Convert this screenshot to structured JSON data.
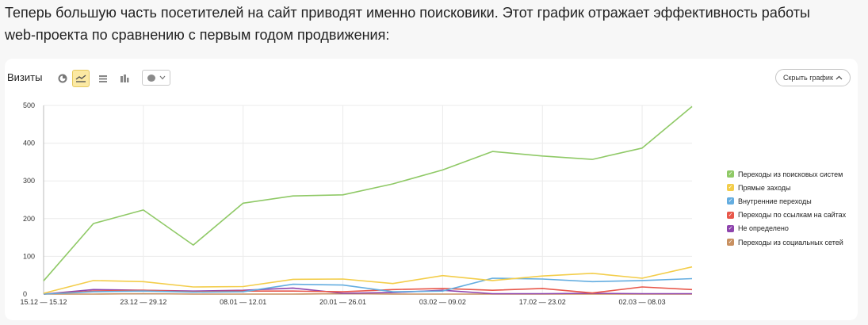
{
  "intro": {
    "line1": "Теперь большую часть посетителей на сайт приводят именно поисковики. Этот график отражает эффективность работы",
    "line2": "web-проекта по сравнению с первым годом продвижения:"
  },
  "toolbar": {
    "title": "Визиты",
    "icons": [
      "pie-chart-icon",
      "line-chart-icon",
      "area-chart-icon",
      "bar-chart-icon"
    ],
    "active_icon": "line-chart-icon",
    "hide_label": "Скрыть график"
  },
  "colors": {
    "accent_active": "#fbe9a3",
    "grid": "#ebebeb"
  },
  "chart_data": {
    "type": "line",
    "x": [
      "15.12 — 15.12",
      "",
      "23.12 — 29.12",
      "",
      "08.01 — 12.01",
      "",
      "20.01 — 26.01",
      "",
      "03.02 — 09.02",
      "",
      "17.02 — 23.02",
      "",
      "02.03 — 08.03",
      ""
    ],
    "yticks": [
      "0",
      "100",
      "200",
      "300",
      "400",
      "500"
    ],
    "ylim": [
      0,
      500
    ],
    "grid": true,
    "legend_position": "right",
    "series": [
      {
        "name": "Переходы из поисковых систем",
        "color": "#8fc966",
        "values": [
          35,
          187,
          223,
          130,
          241,
          260,
          263,
          292,
          329,
          378,
          366,
          357,
          387,
          497
        ]
      },
      {
        "name": "Прямые заходы",
        "color": "#f3cd4a",
        "values": [
          2,
          36,
          33,
          19,
          20,
          39,
          40,
          28,
          49,
          36,
          48,
          55,
          42,
          72
        ]
      },
      {
        "name": "Внутренние переходы",
        "color": "#64ade0",
        "values": [
          0,
          6,
          8,
          5,
          6,
          26,
          24,
          6,
          8,
          42,
          40,
          33,
          36,
          41
        ]
      },
      {
        "name": "Переходы по ссылкам на сайтах",
        "color": "#e8574a",
        "values": [
          0,
          8,
          10,
          6,
          8,
          8,
          6,
          12,
          15,
          10,
          15,
          3,
          19,
          12
        ]
      },
      {
        "name": "Не определено",
        "color": "#8e44ad",
        "values": [
          0,
          12,
          10,
          8,
          10,
          16,
          2,
          4,
          10,
          1,
          1,
          2,
          1,
          1
        ]
      },
      {
        "name": "Переходы из социальных сетей",
        "color": "#c89060",
        "values": [
          0,
          0,
          1,
          0,
          0,
          0,
          1,
          0,
          0,
          0,
          0,
          0,
          0,
          0
        ]
      }
    ]
  }
}
